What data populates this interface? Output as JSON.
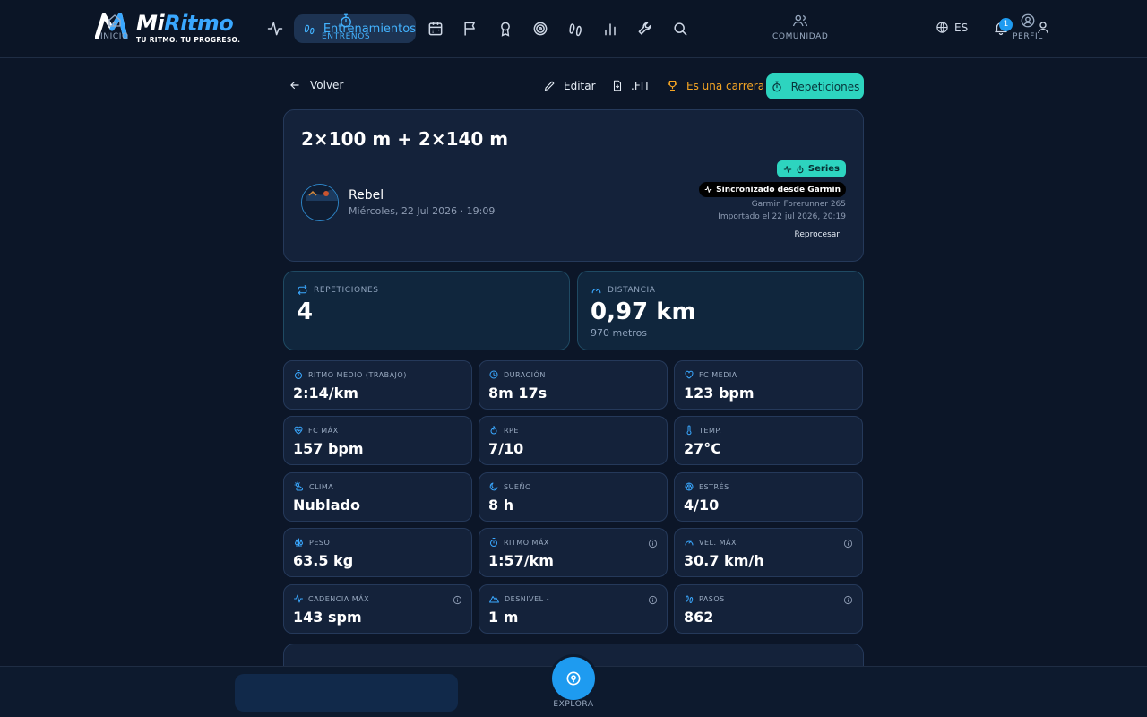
{
  "brand": {
    "name_part1": "Mi",
    "name_part2": "Ritmo",
    "tagline": "TU RITMO. TU PROGRESO.",
    "accent_color": "#3aa8ff"
  },
  "topnav": {
    "active_label": "Entrenamientos",
    "icons": [
      "activity-icon",
      "calendar-icon",
      "flag-icon",
      "award-icon",
      "target-icon",
      "footprints-icon",
      "bar-chart-icon",
      "wrench-icon",
      "search-icon"
    ],
    "language": "ES",
    "notifications_count": "1"
  },
  "actions": {
    "back": "Volver",
    "edit": "Editar",
    "fit": ".FIT",
    "race": "Es una carrera",
    "repetitions": "Repeticiones"
  },
  "workout": {
    "title": "2×100 m + 2×140 m",
    "user_name": "Rebel",
    "date": "Miércoles, 22 Jul 2026 · 19:09",
    "series_badge": "Series",
    "sync_badge": "Sincronizado desde Garmin",
    "device": "Garmin Forerunner 265",
    "imported": "Importado el 22 jul 2026, 20:19",
    "reprocess": "Reprocesar"
  },
  "big_stats": {
    "reps_label": "REPETICIONES",
    "reps_value": "4",
    "distance_label": "DISTANCIA",
    "distance_value": "0,97 km",
    "distance_sub": "970 metros"
  },
  "stats": [
    {
      "label": "RITMO MEDIO (TRABAJO)",
      "value": "2:14/km",
      "icon": "stopwatch-icon"
    },
    {
      "label": "DURACIÓN",
      "value": "8m 17s",
      "icon": "clock-icon"
    },
    {
      "label": "FC MEDIA",
      "value": "123 bpm",
      "icon": "heart-icon"
    },
    {
      "label": "FC MÁX",
      "value": "157 bpm",
      "icon": "heart-pulse-icon"
    },
    {
      "label": "RPE",
      "value": "7/10",
      "icon": "flame-icon"
    },
    {
      "label": "TEMP.",
      "value": "27°C",
      "icon": "thermometer-icon"
    },
    {
      "label": "CLIMA",
      "value": "Nublado",
      "icon": "cloud-sun-icon"
    },
    {
      "label": "SUEÑO",
      "value": "8 h",
      "icon": "moon-icon"
    },
    {
      "label": "ESTRÉS",
      "value": "4/10",
      "icon": "brain-icon"
    },
    {
      "label": "PESO",
      "value": "63.5 kg",
      "icon": "scale-icon"
    },
    {
      "label": "RITMO MÁX",
      "value": "1:57/km",
      "icon": "stopwatch-icon"
    },
    {
      "label": "VEL. MÁX",
      "value": "30.7 km/h",
      "icon": "gauge-icon"
    },
    {
      "label": "CADENCIA MÁX",
      "value": "143 spm",
      "icon": "activity-icon"
    },
    {
      "label": "DESNIVEL -",
      "value": "1 m",
      "icon": "mountain-icon"
    },
    {
      "label": "PASOS",
      "value": "862",
      "icon": "footprints-icon"
    }
  ],
  "bottomnav": {
    "home": "INICIO",
    "workouts": "ENTRENOS",
    "explore": "EXPLORA",
    "community": "COMUNIDAD",
    "profile": "PERFIL"
  }
}
